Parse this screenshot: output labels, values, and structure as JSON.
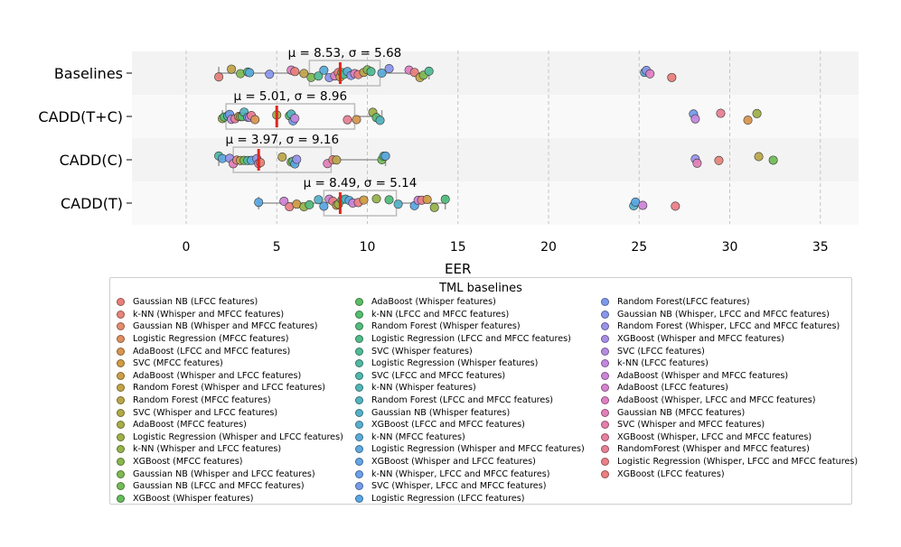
{
  "chart_data": {
    "type": "strip-box",
    "xlabel": "EER",
    "ylabel": "",
    "xlim": [
      -3,
      37
    ],
    "x_ticks": [
      0,
      5,
      10,
      15,
      20,
      25,
      30,
      35
    ],
    "grid": "vertical dashed",
    "categories": [
      "Baselines",
      "CADD(T+C)",
      "CADD(C)",
      "CADD(T)"
    ],
    "groups": [
      {
        "name": "Baselines",
        "stat_label": "μ = 8.53, σ = 5.68",
        "box": {
          "q1": 6.8,
          "median": 8.5,
          "q3": 10.7,
          "whisker_low": 1.8,
          "whisker_high": 13.4
        },
        "points": [
          1.8,
          2.5,
          3.0,
          3.4,
          3.5,
          4.6,
          5.8,
          6.0,
          6.5,
          6.9,
          7.3,
          7.6,
          7.9,
          8.2,
          8.4,
          8.5,
          8.6,
          8.7,
          8.9,
          9.1,
          9.3,
          9.5,
          9.8,
          10.0,
          10.2,
          10.8,
          11.2,
          12.3,
          12.6,
          12.9,
          13.1,
          13.4,
          25.3,
          25.4,
          25.6,
          26.8
        ]
      },
      {
        "name": "CADD(T+C)",
        "stat_label": "μ = 5.01, σ = 8.96",
        "box": {
          "q1": 2.2,
          "median": 5.0,
          "q3": 9.3,
          "whisker_low": 2.0,
          "whisker_high": 10.8
        },
        "points": [
          2.0,
          2.1,
          2.3,
          2.4,
          2.5,
          2.7,
          2.9,
          3.0,
          3.1,
          3.2,
          3.4,
          3.5,
          3.6,
          3.8,
          5.0,
          5.7,
          5.8,
          5.9,
          6.0,
          8.9,
          9.4,
          10.3,
          10.5,
          10.7,
          28.0,
          28.1,
          29.5,
          31.0,
          31.5
        ]
      },
      {
        "name": "CADD(C)",
        "stat_label": "μ = 3.97, σ = 9.16",
        "box": {
          "q1": 2.6,
          "median": 4.0,
          "q3": 8.0,
          "whisker_low": 1.8,
          "whisker_high": 11.0
        },
        "points": [
          1.8,
          2.0,
          2.4,
          2.6,
          2.8,
          3.0,
          3.2,
          3.4,
          3.6,
          3.9,
          4.0,
          4.1,
          5.3,
          5.8,
          5.9,
          6.0,
          6.1,
          7.8,
          8.1,
          8.3,
          10.8,
          10.9,
          11.0,
          28.1,
          28.2,
          29.4,
          31.6,
          32.4
        ]
      },
      {
        "name": "CADD(T)",
        "stat_label": "μ = 8.49, σ = 5.14",
        "box": {
          "q1": 7.6,
          "median": 8.5,
          "q3": 11.6,
          "whisker_low": 4.0,
          "whisker_high": 14.3
        },
        "points": [
          4.0,
          5.4,
          5.7,
          6.1,
          6.5,
          6.8,
          7.3,
          7.6,
          7.9,
          8.1,
          8.3,
          8.4,
          8.6,
          8.8,
          9.0,
          9.2,
          9.5,
          9.8,
          10.5,
          11.2,
          11.7,
          12.6,
          12.8,
          13.0,
          13.3,
          13.7,
          14.3,
          24.7,
          24.8,
          25.2,
          27.0
        ]
      }
    ],
    "legend_title": "TML baselines",
    "legend_placement": "bottom",
    "legend": [
      [
        "Gaussian NB (LFCC features)",
        "#e8807a"
      ],
      [
        "k-NN (Whisper and MFCC features)",
        "#e6857a"
      ],
      [
        "Gaussian NB (Whisper and MFCC features)",
        "#e48c6c"
      ],
      [
        "Logistic Regression (MFCC features)",
        "#de8f5f"
      ],
      [
        "AdaBoost (LFCC and MFCC features)",
        "#d89650"
      ],
      [
        "SVC (MFCC features)",
        "#cf9c44"
      ],
      [
        "AdaBoost (Whisper and LFCC features)",
        "#c9a047"
      ],
      [
        "Random Forest (Whisper and LFCC features)",
        "#c2a34a"
      ],
      [
        "Random Forest (MFCC features)",
        "#baa64b"
      ],
      [
        "SVC (Whisper and LFCC features)",
        "#b1aa46"
      ],
      [
        "AdaBoost (MFCC features)",
        "#a8ad47"
      ],
      [
        "Logistic Regression (Whisper and LFCC features)",
        "#9fb04a"
      ],
      [
        "k-NN (Whisper and LFCC features)",
        "#96b34c"
      ],
      [
        "XGBoost (MFCC features)",
        "#8bb64f"
      ],
      [
        "Gaussian NB (Whisper and LFCC features)",
        "#7fb952"
      ],
      [
        "Gaussian NB (LFCC and MFCC features)",
        "#72bb56"
      ],
      [
        "XGBoost (Whisper features)",
        "#66bc5c"
      ],
      [
        "AdaBoost (Whisper features)",
        "#5bbd64"
      ],
      [
        "k-NN (LFCC and MFCC features)",
        "#55bd70"
      ],
      [
        "Random Forest (Whisper features)",
        "#52bc7d"
      ],
      [
        "Logistic Regression (LFCC and MFCC features)",
        "#51bb8a"
      ],
      [
        "SVC (Whisper features)",
        "#51ba96"
      ],
      [
        "Logistic Regression (Whisper features)",
        "#51b8a1"
      ],
      [
        "SVC (LFCC and MFCC features)",
        "#52b7ac"
      ],
      [
        "k-NN (Whisper features)",
        "#53b5b6"
      ],
      [
        "Random Forest (LFCC and MFCC features)",
        "#54b3bf"
      ],
      [
        "Gaussian NB (Whisper features)",
        "#56b0c8"
      ],
      [
        "XGBoost (LFCC and MFCC features)",
        "#58aed0"
      ],
      [
        "k-NN (MFCC features)",
        "#5babd8"
      ],
      [
        "Logistic Regression (Whisper and MFCC features)",
        "#5fa8df"
      ],
      [
        "XGBoost (Whisper and LFCC features)",
        "#65a4e5"
      ],
      [
        "k-NN (Whisper, LFCC and MFCC features)",
        "#6ca0e9"
      ],
      [
        "SVC (Whisper, LFCC and MFCC features)",
        "#749ceb"
      ],
      [
        "Logistic Regression (LFCC features)",
        "#5aa6e2"
      ],
      [
        "Random Forest(LFCC features)",
        "#7f9aec"
      ],
      [
        "Gaussian NB (Whisper, LFCC and MFCC features)",
        "#8a96ec"
      ],
      [
        "Random Forest (Whisper, LFCC and MFCC features)",
        "#9a92ea"
      ],
      [
        "XGBoost (Whisper and MFCC features)",
        "#a88ee7"
      ],
      [
        "SVC (LFCC features)",
        "#b78be3"
      ],
      [
        "k-NN (LFCC features)",
        "#c487dd"
      ],
      [
        "AdaBoost (Whisper and MFCC features)",
        "#ce84d6"
      ],
      [
        "AdaBoost (LFCC features)",
        "#d782ce"
      ],
      [
        "AdaBoost (Whisper, LFCC and MFCC features)",
        "#de80c3"
      ],
      [
        "Gaussian NB (MFCC features)",
        "#e27fb8"
      ],
      [
        "SVC (Whisper and MFCC features)",
        "#e57fac"
      ],
      [
        "XGBoost (Whisper, LFCC and MFCC features)",
        "#e780a0"
      ],
      [
        "RandomForest (Whisper and MFCC features)",
        "#e88094"
      ],
      [
        "Logistic Regression (Whisper, LFCC and MFCC features)",
        "#e98088"
      ],
      [
        "XGBoost (LFCC features)",
        "#e9807e"
      ]
    ]
  }
}
